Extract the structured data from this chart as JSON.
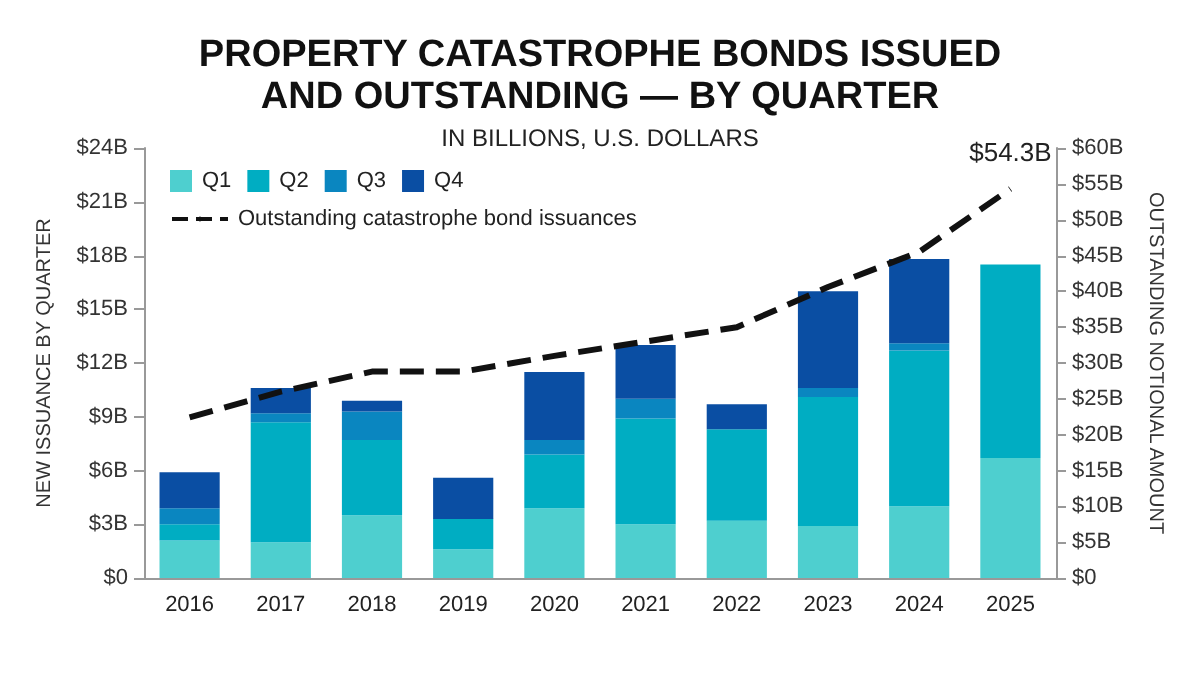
{
  "chart_data": {
    "type": "bar",
    "title": "PROPERTY CATASTROPHE BONDS ISSUED\nAND OUTSTANDING — BY QUARTER",
    "subtitle": "IN BILLIONS, U.S. DOLLARS",
    "ylabel": "NEW ISSUANCE BY QUARTER",
    "y2label": "OUTSTANDING NOTIONAL AMOUNT",
    "categories": [
      "2016",
      "2017",
      "2018",
      "2019",
      "2020",
      "2021",
      "2022",
      "2023",
      "2024",
      "2025"
    ],
    "stacked": true,
    "series": [
      {
        "name": "Q1",
        "color": "#4ecfcf",
        "values": [
          2.1,
          2.0,
          3.5,
          1.6,
          3.9,
          3.0,
          3.2,
          2.9,
          4.0,
          6.7
        ]
      },
      {
        "name": "Q2",
        "color": "#00adc2",
        "values": [
          0.9,
          6.7,
          4.2,
          1.7,
          3.0,
          5.9,
          5.1,
          7.2,
          8.7,
          10.8
        ]
      },
      {
        "name": "Q3",
        "color": "#0a86c0",
        "values": [
          0.9,
          0.5,
          1.6,
          0,
          0.8,
          1.1,
          0,
          0.5,
          0.4,
          null
        ]
      },
      {
        "name": "Q4",
        "color": "#0a4ea3",
        "values": [
          2.0,
          1.4,
          0.6,
          2.3,
          3.8,
          3.0,
          1.4,
          5.4,
          4.7,
          null
        ]
      },
      {
        "name": "Outstanding catastrophe bond issuances",
        "type": "line",
        "axis": "y2",
        "color": "#111111",
        "line_style": "dashed",
        "values": [
          22.4,
          26.0,
          28.8,
          28.8,
          31.0,
          33.0,
          35.0,
          40.6,
          45.5,
          54.3
        ]
      }
    ],
    "ylim": [
      0,
      24
    ],
    "yticks": [
      {
        "value": 0,
        "label": "$0"
      },
      {
        "value": 3,
        "label": "$3B"
      },
      {
        "value": 6,
        "label": "$6B"
      },
      {
        "value": 9,
        "label": "$9B"
      },
      {
        "value": 12,
        "label": "$12B"
      },
      {
        "value": 15,
        "label": "$15B"
      },
      {
        "value": 18,
        "label": "$18B"
      },
      {
        "value": 21,
        "label": "$21B"
      },
      {
        "value": 24,
        "label": "$24B"
      }
    ],
    "y2lim": [
      0,
      60
    ],
    "y2ticks": [
      {
        "value": 0,
        "label": "$0"
      },
      {
        "value": 5,
        "label": "$5B"
      },
      {
        "value": 10,
        "label": "$10B"
      },
      {
        "value": 15,
        "label": "$15B"
      },
      {
        "value": 20,
        "label": "$20B"
      },
      {
        "value": 25,
        "label": "$25B"
      },
      {
        "value": 30,
        "label": "$30B"
      },
      {
        "value": 35,
        "label": "$35B"
      },
      {
        "value": 40,
        "label": "$40B"
      },
      {
        "value": 45,
        "label": "$45B"
      },
      {
        "value": 50,
        "label": "$50B"
      },
      {
        "value": 55,
        "label": "$55B"
      },
      {
        "value": 60,
        "label": "$60B"
      }
    ],
    "annotations": [
      "$54.3B"
    ],
    "grid": false,
    "legend": "top left"
  }
}
